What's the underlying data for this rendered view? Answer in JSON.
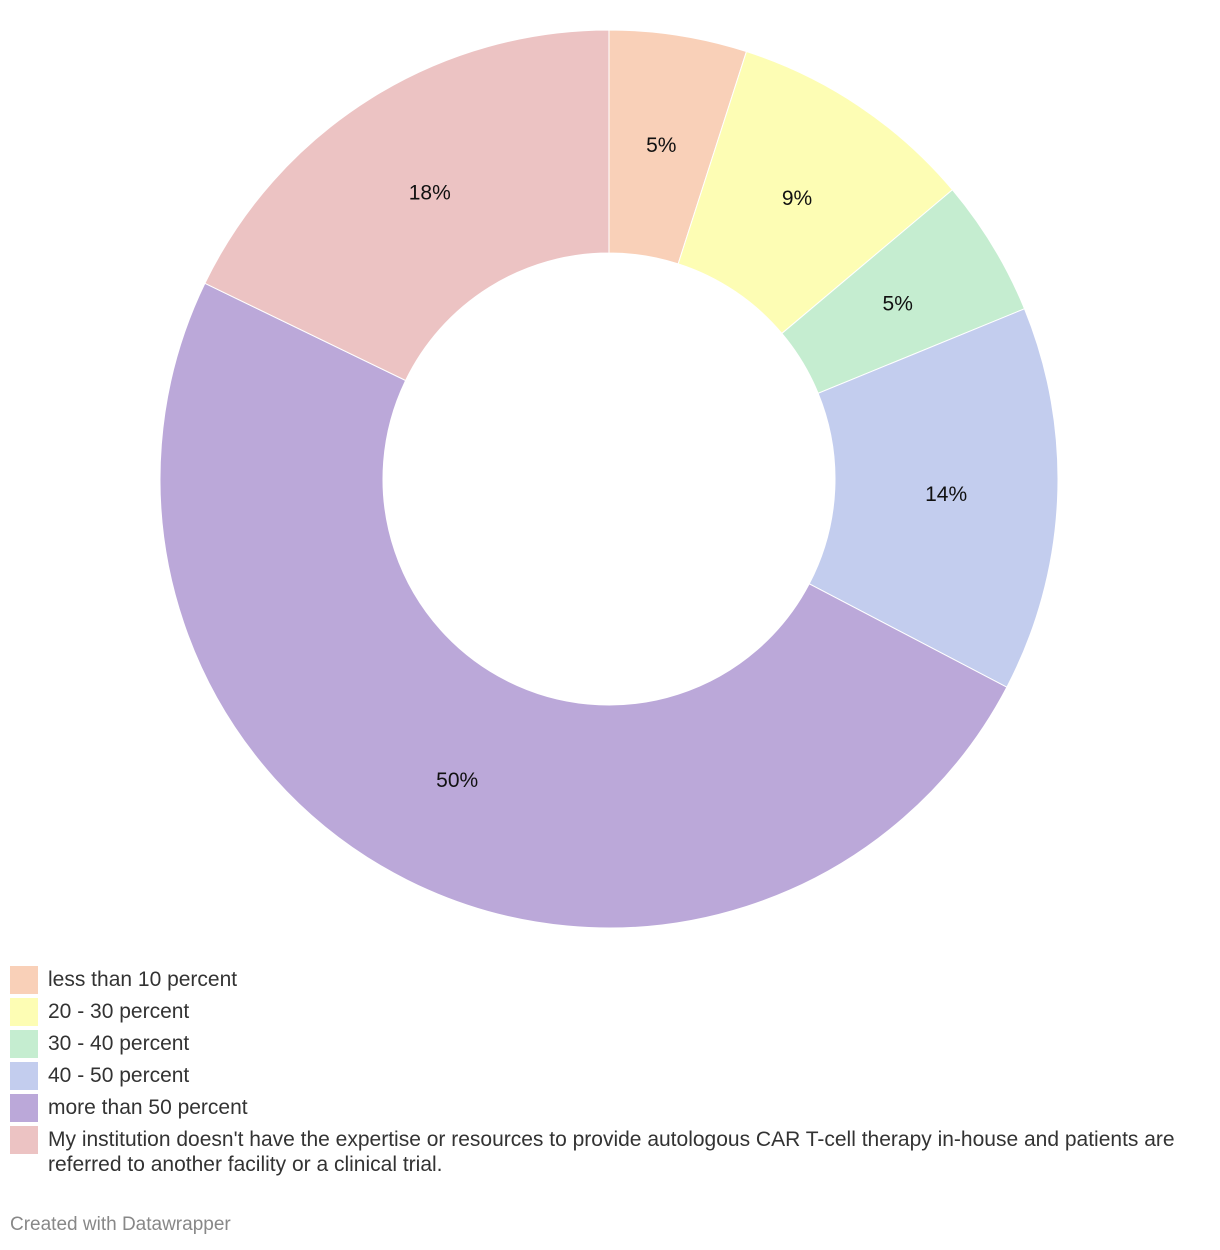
{
  "chart_data": {
    "type": "pie",
    "subtype": "donut",
    "unit": "%",
    "legend_position": "bottom",
    "slices": [
      {
        "label": "less than 10 percent",
        "value": 5,
        "display": "5%",
        "color": "#f9d0b8"
      },
      {
        "label": "20 - 30 percent",
        "value": 9,
        "display": "9%",
        "color": "#fdfdb4"
      },
      {
        "label": "30 - 40 percent",
        "value": 5,
        "display": "5%",
        "color": "#c5edd0"
      },
      {
        "label": "40 - 50 percent",
        "value": 14,
        "display": "14%",
        "color": "#c3cdee"
      },
      {
        "label": "more than 50 percent",
        "value": 50,
        "display": "50%",
        "color": "#bba8d9"
      },
      {
        "label": "My institution doesn't have the expertise or resources to provide autologous CAR T-cell therapy in-house and patients are referred to another facility or a clinical trial.",
        "value": 18,
        "display": "18%",
        "color": "#ecc3c3"
      }
    ]
  },
  "footer": {
    "credit": "Created with Datawrapper"
  }
}
